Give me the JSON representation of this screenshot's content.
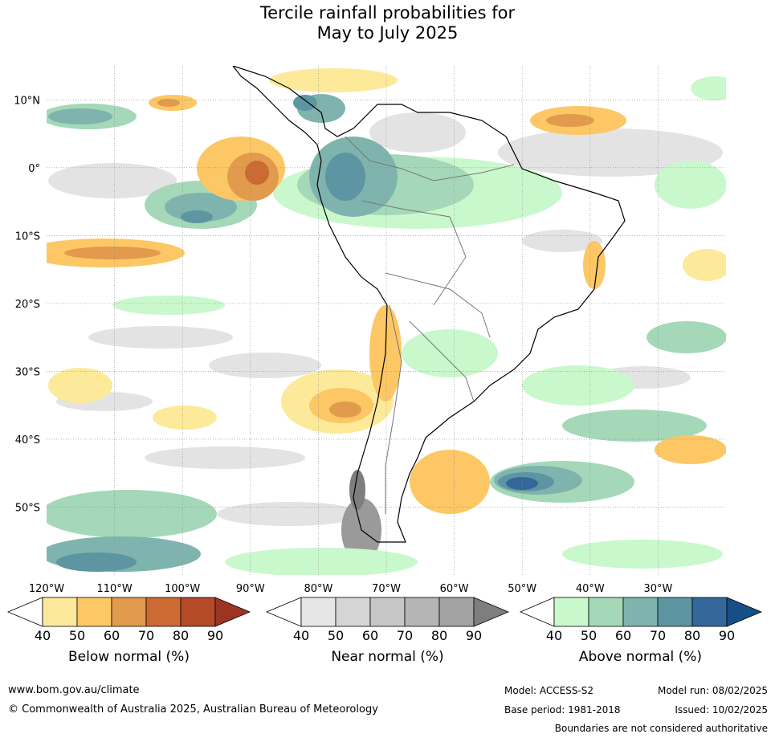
{
  "title_line1": "Tercile rainfall probabilities for",
  "title_line2": "May to July 2025",
  "lat_labels": [
    "10°N",
    "0°",
    "10°S",
    "20°S",
    "30°S",
    "40°S",
    "50°S"
  ],
  "lon_labels": [
    "120°W",
    "110°W",
    "100°W",
    "90°W",
    "80°W",
    "70°W",
    "60°W",
    "50°W",
    "40°W",
    "30°W"
  ],
  "colorbars": [
    {
      "name": "below",
      "label": "Below normal (%)",
      "ticks": [
        "40",
        "50",
        "60",
        "70",
        "80",
        "90"
      ],
      "colors": [
        "#ffffff",
        "#fde99a",
        "#fcc764",
        "#e29a4c",
        "#cc6a34",
        "#b44a28",
        "#9b3522"
      ]
    },
    {
      "name": "near",
      "label": "Near normal (%)",
      "ticks": [
        "40",
        "50",
        "60",
        "70",
        "80",
        "90"
      ],
      "colors": [
        "#ffffff",
        "#e6e6e6",
        "#d5d5d5",
        "#c6c6c6",
        "#b5b5b5",
        "#a2a2a2",
        "#7e7e7e"
      ]
    },
    {
      "name": "above",
      "label": "Above normal (%)",
      "ticks": [
        "40",
        "50",
        "60",
        "70",
        "80",
        "90"
      ],
      "colors": [
        "#ffffff",
        "#c9f8cc",
        "#a4d8b8",
        "#7fb4ae",
        "#5d95a2",
        "#34679a",
        "#164e86"
      ]
    }
  ],
  "footer": {
    "website": "www.bom.gov.au/climate",
    "copyright": "© Commonwealth of Australia 2025, Australian Bureau of Meteorology",
    "model": "Model: ACCESS-S2",
    "model_run": "Model run: 08/02/2025",
    "base_period": "Base period: 1981-2018",
    "issued": "Issued: 10/02/2025",
    "disclaimer": "Boundaries are not considered authoritative"
  }
}
